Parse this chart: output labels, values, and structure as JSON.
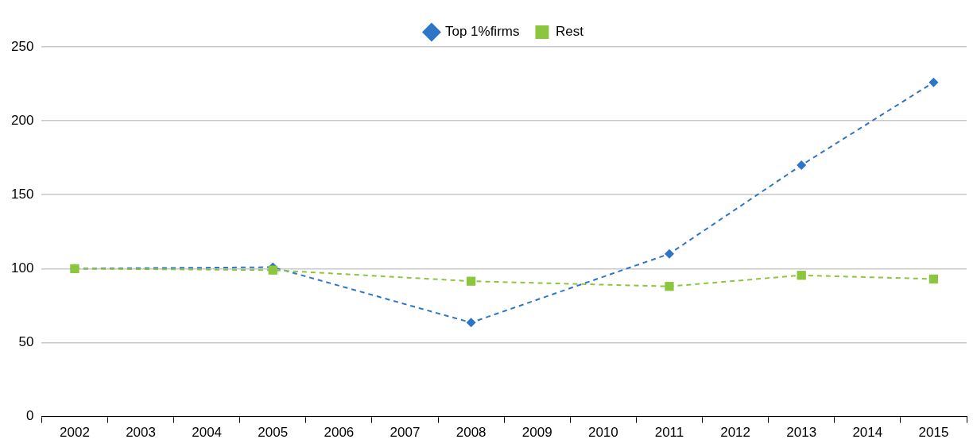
{
  "chart_data": {
    "type": "line",
    "categories": [
      "2002",
      "2003",
      "2004",
      "2005",
      "2006",
      "2007",
      "2008",
      "2009",
      "2010",
      "2011",
      "2012",
      "2013",
      "2014",
      "2015"
    ],
    "series": [
      {
        "name": "Top 1%firms",
        "color": "#2e75c8",
        "marker": "diamond",
        "values": [
          100,
          null,
          null,
          101,
          null,
          null,
          63.5,
          null,
          null,
          110,
          null,
          170,
          null,
          226
        ]
      },
      {
        "name": "Rest",
        "color": "#8cc63f",
        "marker": "square",
        "values": [
          100,
          null,
          null,
          99,
          null,
          null,
          91.5,
          null,
          null,
          88,
          null,
          95.5,
          null,
          93
        ]
      }
    ],
    "ylim": [
      0,
      250
    ],
    "yticks": [
      0,
      50,
      100,
      150,
      200,
      250
    ],
    "grid": "y",
    "legend": "top",
    "line_style": "dashed"
  }
}
